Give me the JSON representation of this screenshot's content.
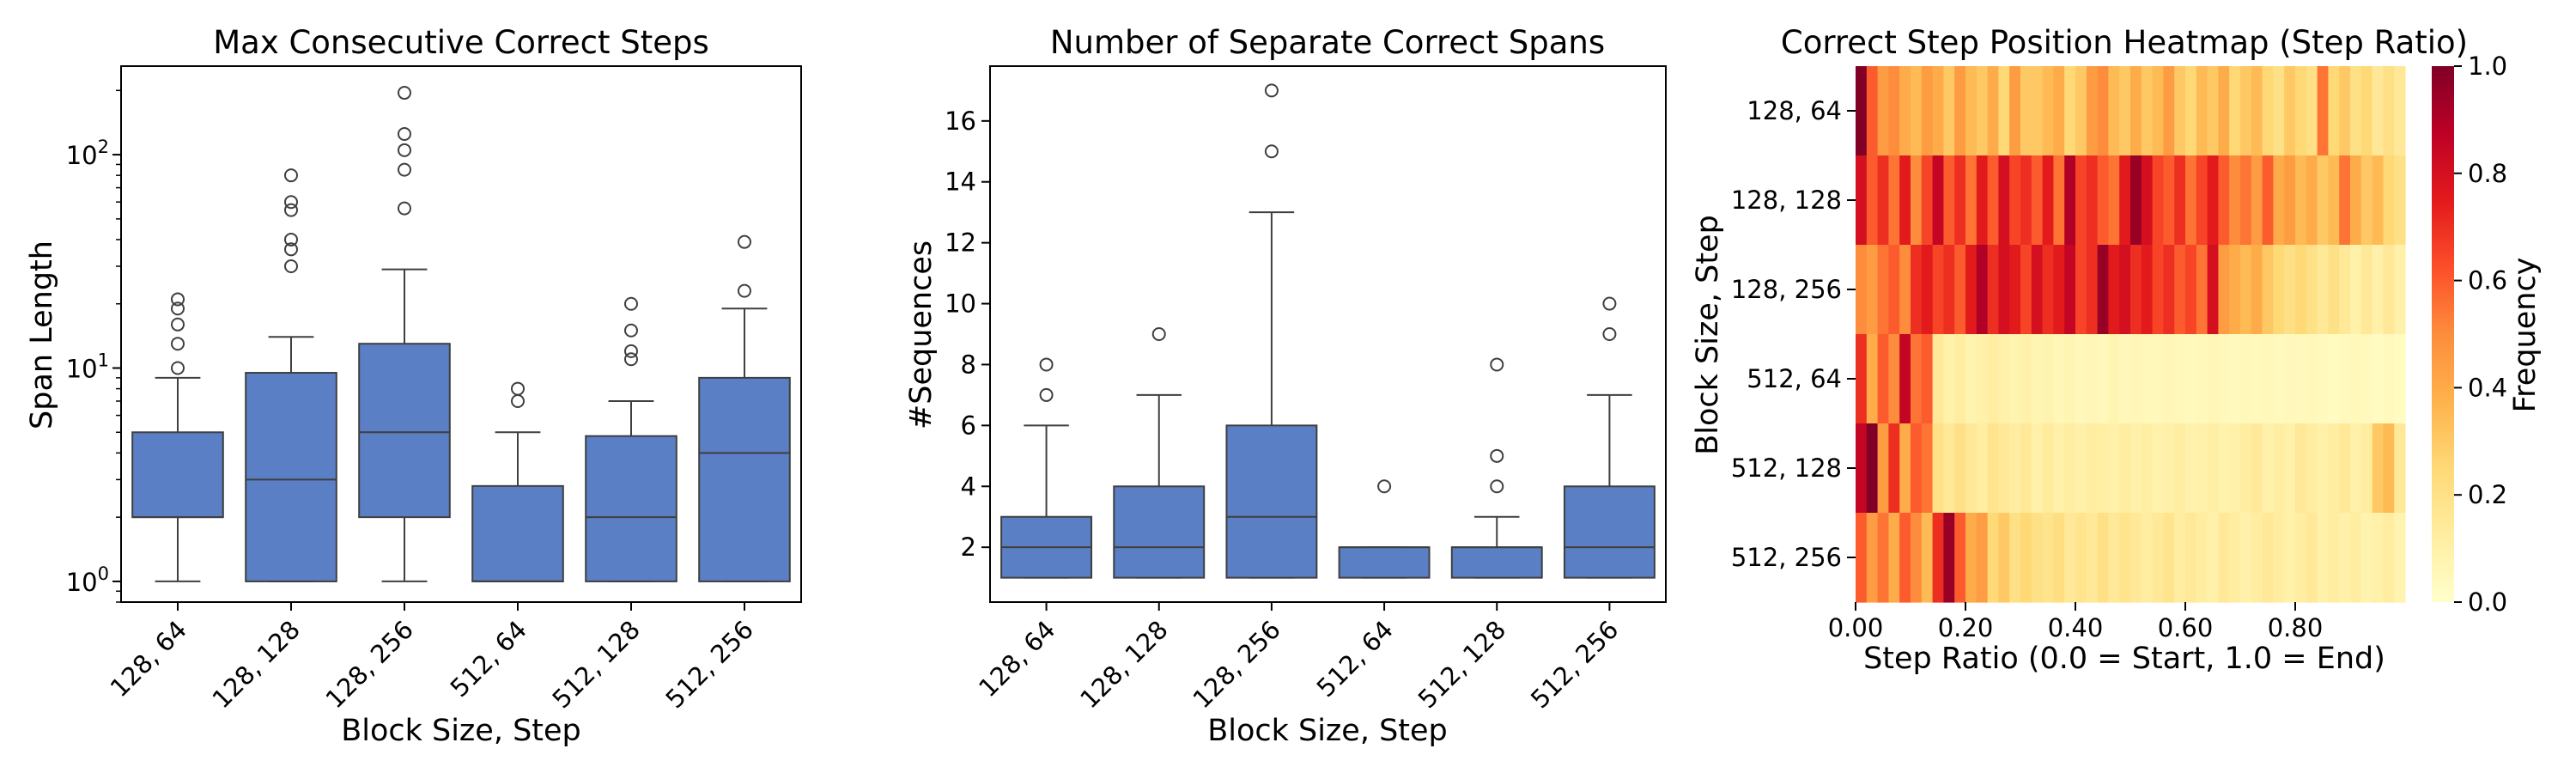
{
  "chart_data": [
    {
      "type": "box",
      "title": "Max Consecutive Correct Steps",
      "xlabel": "Block Size, Step",
      "ylabel": "Span Length",
      "yscale": "log",
      "ylim": [
        0.8,
        260
      ],
      "yticks": [
        {
          "value": 1,
          "base": "10",
          "exp": "0"
        },
        {
          "value": 10,
          "base": "10",
          "exp": "1"
        },
        {
          "value": 100,
          "base": "10",
          "exp": "2"
        }
      ],
      "categories": [
        "128, 64",
        "128, 128",
        "128, 256",
        "512, 64",
        "512, 128",
        "512, 256"
      ],
      "color": "#5a7fc4",
      "boxes": [
        {
          "whislo": 1,
          "q1": 2,
          "med": 2,
          "q3": 5,
          "whishi": 9,
          "fliers": [
            10,
            13,
            16,
            19,
            21
          ]
        },
        {
          "whislo": 1,
          "q1": 1,
          "med": 3,
          "q3": 9.5,
          "whishi": 14,
          "fliers": [
            30,
            36,
            40,
            55,
            60,
            80
          ]
        },
        {
          "whislo": 1,
          "q1": 2,
          "med": 5,
          "q3": 13,
          "whishi": 29,
          "fliers": [
            56,
            85,
            105,
            125,
            195
          ]
        },
        {
          "whislo": 1,
          "q1": 1,
          "med": 1,
          "q3": 2.8,
          "whishi": 5,
          "fliers": [
            7,
            8
          ]
        },
        {
          "whislo": 1,
          "q1": 1,
          "med": 2,
          "q3": 4.8,
          "whishi": 7,
          "fliers": [
            11,
            12,
            15,
            20
          ]
        },
        {
          "whislo": 1,
          "q1": 1,
          "med": 4,
          "q3": 9,
          "whishi": 19,
          "fliers": [
            23,
            39
          ]
        }
      ]
    },
    {
      "type": "box",
      "title": "Number of Separate Correct Spans",
      "xlabel": "Block Size, Step",
      "ylabel": "#Sequences",
      "yscale": "linear",
      "ylim": [
        0.2,
        17.8
      ],
      "yticks": [
        {
          "value": 2,
          "label": "2"
        },
        {
          "value": 4,
          "label": "4"
        },
        {
          "value": 6,
          "label": "6"
        },
        {
          "value": 8,
          "label": "8"
        },
        {
          "value": 10,
          "label": "10"
        },
        {
          "value": 12,
          "label": "12"
        },
        {
          "value": 14,
          "label": "14"
        },
        {
          "value": 16,
          "label": "16"
        }
      ],
      "categories": [
        "128, 64",
        "128, 128",
        "128, 256",
        "512, 64",
        "512, 128",
        "512, 256"
      ],
      "color": "#5a7fc4",
      "boxes": [
        {
          "whislo": 1,
          "q1": 1,
          "med": 2,
          "q3": 3,
          "whishi": 6,
          "fliers": [
            7,
            8
          ]
        },
        {
          "whislo": 1,
          "q1": 1,
          "med": 2,
          "q3": 4,
          "whishi": 7,
          "fliers": [
            9
          ]
        },
        {
          "whislo": 1,
          "q1": 1,
          "med": 3,
          "q3": 6,
          "whishi": 13,
          "fliers": [
            15,
            17
          ]
        },
        {
          "whislo": 1,
          "q1": 1,
          "med": 2,
          "q3": 2,
          "whishi": 2,
          "fliers": [
            4
          ]
        },
        {
          "whislo": 1,
          "q1": 1,
          "med": 2,
          "q3": 2,
          "whishi": 3,
          "fliers": [
            4,
            5,
            8
          ]
        },
        {
          "whislo": 1,
          "q1": 1,
          "med": 2,
          "q3": 4,
          "whishi": 7,
          "fliers": [
            9,
            10
          ]
        }
      ]
    },
    {
      "type": "heatmap",
      "title": "Correct Step Position Heatmap (Step Ratio)",
      "xlabel": "Step Ratio (0.0 = Start, 1.0 = End)",
      "ylabel": "Block Size, Step",
      "rows": [
        "128, 64",
        "128, 128",
        "128, 256",
        "512, 64",
        "512, 128",
        "512, 256"
      ],
      "xticks": [
        "0.00",
        "0.20",
        "0.40",
        "0.60",
        "0.80"
      ],
      "xtick_values": [
        0,
        0.2,
        0.4,
        0.6,
        0.8
      ],
      "n_bins": 50,
      "colorbar": {
        "label": "Frequency",
        "range": [
          0,
          1
        ],
        "ticks": [
          "0.0",
          "0.2",
          "0.4",
          "0.6",
          "0.8",
          "1.0"
        ],
        "colormap": "YlOrRd",
        "stops": [
          "#ffffcc",
          "#ffeda0",
          "#fed976",
          "#feb24c",
          "#fd8d3c",
          "#fc4e2a",
          "#e31a1c",
          "#bd0026",
          "#800026"
        ]
      },
      "values": [
        [
          1.0,
          0.6,
          0.45,
          0.5,
          0.4,
          0.35,
          0.45,
          0.4,
          0.3,
          0.45,
          0.35,
          0.3,
          0.4,
          0.25,
          0.45,
          0.3,
          0.3,
          0.35,
          0.4,
          0.25,
          0.3,
          0.45,
          0.5,
          0.35,
          0.3,
          0.4,
          0.3,
          0.35,
          0.45,
          0.3,
          0.25,
          0.35,
          0.3,
          0.4,
          0.25,
          0.3,
          0.35,
          0.25,
          0.2,
          0.3,
          0.25,
          0.2,
          0.55,
          0.25,
          0.3,
          0.2,
          0.25,
          0.15,
          0.2,
          0.15
        ],
        [
          0.8,
          0.6,
          0.7,
          0.55,
          0.75,
          0.5,
          0.65,
          0.85,
          0.6,
          0.7,
          0.55,
          0.75,
          0.6,
          0.8,
          0.65,
          0.7,
          0.6,
          0.75,
          0.55,
          0.9,
          0.65,
          0.7,
          0.6,
          0.55,
          0.75,
          0.95,
          0.8,
          0.65,
          0.6,
          0.7,
          0.55,
          0.65,
          0.75,
          0.6,
          0.5,
          0.55,
          0.45,
          0.6,
          0.4,
          0.45,
          0.35,
          0.4,
          0.3,
          0.35,
          0.55,
          0.4,
          0.3,
          0.35,
          0.25,
          0.2
        ],
        [
          0.5,
          0.45,
          0.55,
          0.6,
          0.5,
          0.7,
          0.75,
          0.65,
          0.7,
          0.6,
          0.75,
          0.9,
          0.7,
          0.8,
          0.75,
          0.65,
          0.8,
          0.7,
          0.75,
          0.85,
          0.65,
          0.7,
          0.95,
          0.75,
          0.8,
          0.7,
          0.75,
          0.65,
          0.7,
          0.6,
          0.65,
          0.55,
          0.8,
          0.45,
          0.4,
          0.35,
          0.4,
          0.3,
          0.25,
          0.2,
          0.25,
          0.2,
          0.15,
          0.2,
          0.15,
          0.1,
          0.15,
          0.1,
          0.15,
          0.1
        ],
        [
          0.7,
          0.4,
          0.6,
          0.5,
          0.85,
          0.55,
          0.6,
          0.15,
          0.1,
          0.12,
          0.08,
          0.1,
          0.12,
          0.1,
          0.08,
          0.1,
          0.07,
          0.08,
          0.06,
          0.07,
          0.05,
          0.06,
          0.05,
          0.07,
          0.05,
          0.06,
          0.05,
          0.05,
          0.06,
          0.05,
          0.04,
          0.05,
          0.06,
          0.05,
          0.04,
          0.05,
          0.04,
          0.05,
          0.04,
          0.05,
          0.04,
          0.05,
          0.04,
          0.03,
          0.04,
          0.05,
          0.04,
          0.03,
          0.04,
          0.03
        ],
        [
          0.85,
          1.0,
          0.45,
          0.7,
          0.4,
          0.6,
          0.55,
          0.2,
          0.15,
          0.2,
          0.15,
          0.12,
          0.18,
          0.15,
          0.12,
          0.15,
          0.1,
          0.14,
          0.1,
          0.12,
          0.1,
          0.12,
          0.11,
          0.1,
          0.12,
          0.1,
          0.11,
          0.09,
          0.1,
          0.12,
          0.09,
          0.1,
          0.11,
          0.09,
          0.1,
          0.12,
          0.15,
          0.1,
          0.12,
          0.1,
          0.15,
          0.12,
          0.1,
          0.12,
          0.15,
          0.1,
          0.12,
          0.3,
          0.35,
          0.15
        ],
        [
          0.6,
          0.45,
          0.55,
          0.4,
          0.6,
          0.5,
          0.35,
          0.7,
          0.95,
          0.6,
          0.4,
          0.45,
          0.25,
          0.3,
          0.2,
          0.25,
          0.2,
          0.18,
          0.22,
          0.15,
          0.18,
          0.15,
          0.2,
          0.15,
          0.18,
          0.15,
          0.12,
          0.15,
          0.18,
          0.12,
          0.15,
          0.12,
          0.1,
          0.15,
          0.12,
          0.1,
          0.12,
          0.15,
          0.12,
          0.1,
          0.12,
          0.15,
          0.1,
          0.12,
          0.1,
          0.12,
          0.08,
          0.1,
          0.12,
          0.08
        ]
      ]
    }
  ]
}
